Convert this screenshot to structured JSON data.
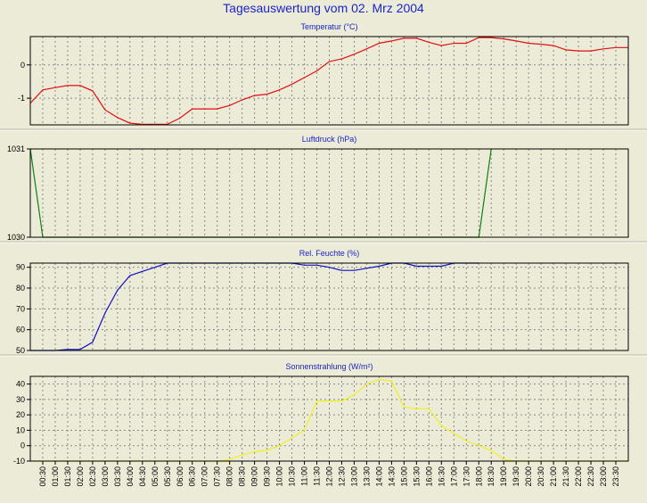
{
  "title": "Tagesauswertung vom 02. Mrz 2004",
  "times": [
    "00:30",
    "01:00",
    "01:30",
    "02:00",
    "02:30",
    "03:00",
    "03:30",
    "04:00",
    "04:30",
    "05:00",
    "05:30",
    "06:00",
    "06:30",
    "07:00",
    "07:30",
    "08:00",
    "08:30",
    "09:00",
    "09:30",
    "10:00",
    "10:30",
    "11:00",
    "11:30",
    "12:00",
    "12:30",
    "13:00",
    "13:30",
    "14:00",
    "14:30",
    "15:00",
    "15:30",
    "16:00",
    "16:30",
    "17:00",
    "17:30",
    "18:00",
    "18:30",
    "19:00",
    "19:30",
    "20:00",
    "20:30",
    "21:00",
    "21:30",
    "22:00",
    "22:30",
    "23:00",
    "23:30"
  ],
  "colors": {
    "background": "#ecebd8",
    "panel_border": "#000000",
    "grid": "#888888",
    "title": "#1a24c8",
    "temperature": "#e01010",
    "pressure": "#108010",
    "humidity": "#1010c0",
    "radiation": "#f0f020"
  },
  "chart_data": [
    {
      "type": "line",
      "title": "Temperatur (°C)",
      "series_color_key": "temperature",
      "ylim": [
        -1.8,
        0.85
      ],
      "yticks": [
        0,
        -1
      ],
      "x": [
        "00:00",
        "00:30",
        "01:00",
        "01:30",
        "02:00",
        "02:30",
        "03:00",
        "03:30",
        "04:00",
        "04:30",
        "05:00",
        "05:30",
        "06:00",
        "06:30",
        "07:00",
        "07:30",
        "08:00",
        "08:30",
        "09:00",
        "09:30",
        "10:00",
        "10:30",
        "11:00",
        "11:30",
        "12:00",
        "12:30",
        "13:00",
        "13:30",
        "14:00",
        "14:30",
        "15:00",
        "15:30",
        "16:00",
        "16:30",
        "17:00",
        "17:30",
        "18:00",
        "18:30",
        "19:00",
        "19:30",
        "20:00",
        "20:30",
        "21:00",
        "21:30",
        "22:00",
        "22:30",
        "23:00",
        "23:30",
        "24:00"
      ],
      "values": [
        -1.15,
        -0.75,
        -0.68,
        -0.62,
        -0.62,
        -0.78,
        -1.35,
        -1.58,
        -1.75,
        -1.78,
        -1.78,
        -1.78,
        -1.6,
        -1.32,
        -1.32,
        -1.32,
        -1.22,
        -1.05,
        -0.92,
        -0.88,
        -0.75,
        -0.58,
        -0.38,
        -0.18,
        0.1,
        0.18,
        0.32,
        0.48,
        0.65,
        0.72,
        0.8,
        0.8,
        0.68,
        0.58,
        0.65,
        0.65,
        0.82,
        0.82,
        0.78,
        0.72,
        0.65,
        0.62,
        0.58,
        0.45,
        0.42,
        0.42,
        0.48,
        0.52,
        0.52
      ]
    },
    {
      "type": "line",
      "title": "Luftdruck (hPa)",
      "series_color_key": "pressure",
      "ylim": [
        1030,
        1031
      ],
      "yticks": [
        1031,
        1030
      ],
      "x": [
        "00:00",
        "00:30",
        "18:00",
        "18:30"
      ],
      "values": [
        1031,
        1030,
        1030,
        1031
      ]
    },
    {
      "type": "line",
      "title": "Rel. Feuchte (%)",
      "series_color_key": "humidity",
      "ylim": [
        50,
        92
      ],
      "yticks": [
        90,
        80,
        70,
        60,
        50
      ],
      "x": [
        "00:00",
        "00:30",
        "01:00",
        "01:30",
        "02:00",
        "02:30",
        "03:00",
        "03:30",
        "04:00",
        "04:30",
        "05:00",
        "05:30",
        "06:00",
        "10:30",
        "11:00",
        "11:30",
        "12:00",
        "12:30",
        "13:00",
        "13:30",
        "14:00",
        "14:30",
        "15:00",
        "15:30",
        "16:00",
        "16:30",
        "17:00",
        "17:30",
        "18:00"
      ],
      "values": [
        50,
        50,
        50,
        50.5,
        50.5,
        54,
        68,
        79,
        86,
        88,
        90,
        92,
        92,
        92,
        91,
        91,
        90,
        88.5,
        88.5,
        89.5,
        90.5,
        92,
        92,
        90.5,
        90.5,
        90.5,
        92,
        92,
        92
      ]
    },
    {
      "type": "line",
      "title": "Sonnenstrahlung (W/m²)",
      "series_color_key": "radiation",
      "ylim": [
        -10,
        45
      ],
      "yticks": [
        40,
        30,
        20,
        10,
        0,
        -10
      ],
      "x": [
        "00:00",
        "00:30",
        "01:00",
        "01:30",
        "02:00",
        "02:30",
        "03:00",
        "03:30",
        "04:00",
        "04:30",
        "05:00",
        "05:30",
        "06:00",
        "06:30",
        "07:00",
        "07:30",
        "08:00",
        "08:30",
        "09:00",
        "09:30",
        "10:00",
        "10:30",
        "11:00",
        "11:30",
        "12:00",
        "12:30",
        "13:00",
        "13:30",
        "14:00",
        "14:30",
        "15:00",
        "15:30",
        "16:00",
        "16:30",
        "17:00",
        "17:30",
        "18:00",
        "18:30",
        "19:00",
        "19:30",
        "20:00",
        "20:30",
        "21:00",
        "21:30",
        "22:00",
        "22:30",
        "23:00",
        "23:30",
        "24:00"
      ],
      "values": [
        -10,
        -10,
        -10,
        -10,
        -10,
        -10,
        -10,
        -10,
        -10,
        -10,
        -10,
        -10,
        -10,
        -10,
        -10,
        -10,
        -9,
        -6,
        -4,
        -3,
        0,
        5,
        10,
        29,
        29,
        29,
        33,
        40,
        43,
        42,
        25,
        24,
        24,
        13,
        8,
        3,
        0,
        -3,
        -9,
        -10,
        -10,
        -10,
        -10,
        -10,
        -10,
        -10,
        -10,
        -10,
        -10
      ]
    }
  ]
}
